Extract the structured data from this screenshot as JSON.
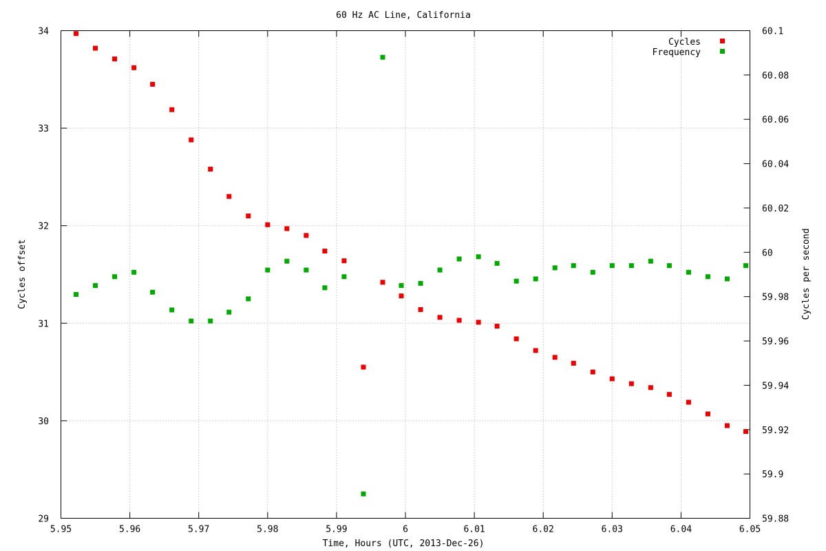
{
  "chart_data": {
    "type": "scatter",
    "title": "60 Hz AC Line, California",
    "xlabel": "Time, Hours (UTC, 2013-Dec-26)",
    "ylabel": "Cycles offset",
    "y2label": "Cycles per second",
    "xlim": [
      5.95,
      6.05
    ],
    "ylim": [
      29,
      34
    ],
    "y2lim": [
      59.88,
      60.1
    ],
    "x_ticks": [
      "5.95",
      "5.96",
      "5.97",
      "5.98",
      "5.99",
      "6",
      "6.01",
      "6.02",
      "6.03",
      "6.04",
      "6.05"
    ],
    "y_ticks": [
      "29",
      "30",
      "31",
      "32",
      "33",
      "34"
    ],
    "y2_ticks": [
      "59.88",
      "59.9",
      "59.92",
      "59.94",
      "59.96",
      "59.98",
      "60",
      "60.02",
      "60.04",
      "60.06",
      "60.08",
      "60.1"
    ],
    "grid": true,
    "legend_position": "top-right",
    "series": [
      {
        "name": "Cycles",
        "axis": "y",
        "color": "#ee0000",
        "x": [
          5.9522,
          5.955,
          5.9578,
          5.9606,
          5.9633,
          5.9661,
          5.9689,
          5.9717,
          5.9744,
          5.9772,
          5.98,
          5.9828,
          5.9856,
          5.9883,
          5.9911,
          5.9939,
          5.9967,
          5.9994,
          6.0022,
          6.005,
          6.0078,
          6.0106,
          6.0133,
          6.0161,
          6.0189,
          6.0217,
          6.0244,
          6.0272,
          6.03,
          6.0328,
          6.0356,
          6.0383,
          6.0411,
          6.0439,
          6.0467,
          6.0494
        ],
        "values": [
          33.97,
          33.82,
          33.71,
          33.62,
          33.45,
          33.19,
          32.88,
          32.58,
          32.3,
          32.1,
          32.01,
          31.97,
          31.9,
          31.74,
          31.64,
          30.55,
          31.42,
          31.28,
          31.14,
          31.06,
          31.03,
          31.01,
          30.97,
          30.84,
          30.72,
          30.65,
          30.59,
          30.5,
          30.43,
          30.38,
          30.34,
          30.27,
          30.19,
          30.07,
          29.95,
          29.89
        ]
      },
      {
        "name": "Frequency",
        "axis": "y2",
        "color": "#00aa00",
        "x": [
          5.9522,
          5.955,
          5.9578,
          5.9606,
          5.9633,
          5.9661,
          5.9689,
          5.9717,
          5.9744,
          5.9772,
          5.98,
          5.9828,
          5.9856,
          5.9883,
          5.9911,
          5.9939,
          5.9967,
          5.9994,
          6.0022,
          6.005,
          6.0078,
          6.0106,
          6.0133,
          6.0161,
          6.0189,
          6.0217,
          6.0244,
          6.0272,
          6.03,
          6.0328,
          6.0356,
          6.0383,
          6.0411,
          6.0439,
          6.0467,
          6.0494
        ],
        "values": [
          59.981,
          59.985,
          59.989,
          59.991,
          59.982,
          59.974,
          59.969,
          59.969,
          59.973,
          59.979,
          59.992,
          59.996,
          59.992,
          59.984,
          59.989,
          59.891,
          60.088,
          59.985,
          59.986,
          59.992,
          59.997,
          59.998,
          59.995,
          59.987,
          59.988,
          59.993,
          59.994,
          59.991,
          59.994,
          59.994,
          59.996,
          59.994,
          59.991,
          59.989,
          59.988,
          59.994
        ]
      }
    ]
  }
}
